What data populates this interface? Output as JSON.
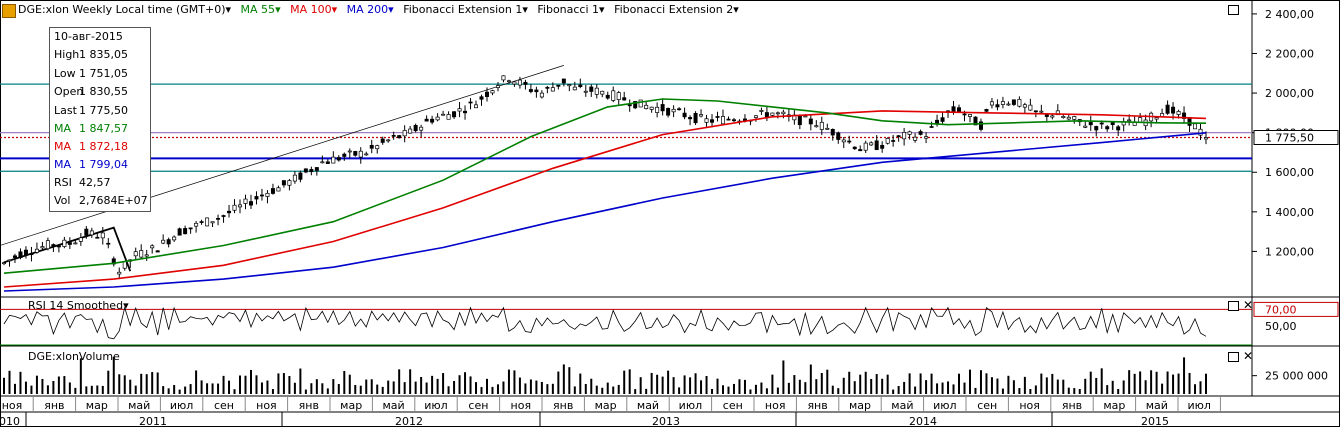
{
  "header": {
    "symbol_label": "DGE:xlon Weekly Local time (GMT+0)",
    "ma55_label": "MA 55",
    "ma100_label": "MA 100",
    "ma200_label": "MA 200",
    "fib_ext1_label": "Fibonacci Extension 1",
    "fib1_label": "Fibonacci 1",
    "fib_ext2_label": "Fibonacci Extension 2",
    "dropdown_glyph": "▾"
  },
  "ohlc_box": {
    "date": "10-авг-2015",
    "rows": [
      {
        "key": "High",
        "value": "1 835,05"
      },
      {
        "key": "Low",
        "value": "1 751,05"
      },
      {
        "key": "Open",
        "value": "1 830,55"
      },
      {
        "key": "Last",
        "value": "1 775,50"
      },
      {
        "key": "MA",
        "value": "1 847,57"
      },
      {
        "key": "MA",
        "value": "1 872,18"
      },
      {
        "key": "MA",
        "value": "1 799,04"
      },
      {
        "key": "RSI",
        "value": "42,57"
      },
      {
        "key": "Vol",
        "value": "2,7684E+07"
      }
    ]
  },
  "rsi_panel": {
    "title": "RSI 14 Smoothed",
    "level_label": "70,00",
    "tick_label": "50,00"
  },
  "volume_panel": {
    "title": "DGE:xlonVolume",
    "tick_label": "25 000 000"
  },
  "colors": {
    "ma55": "#008000",
    "ma100": "#e00000",
    "ma200": "#0000cc",
    "candle_up": "#ffffff",
    "candle_down": "#000000",
    "fib_teal": "#008080"
  },
  "chart_data": {
    "type": "candlestick",
    "timeframe": "weekly",
    "y_axis": {
      "ticks": [
        "2 400,00",
        "2 200,00",
        "2 000,00",
        "1 800,00",
        "1 600,00",
        "1 400,00",
        "1 200,00"
      ],
      "values": [
        2400,
        2200,
        2000,
        1800,
        1600,
        1400,
        1200
      ],
      "ylim": [
        1000,
        2450
      ]
    },
    "last_price_label": "1 775,50",
    "last_price": 1775.5,
    "horizontal_levels": [
      {
        "value": 2045,
        "color": "#008080"
      },
      {
        "value": 1800,
        "color": "#a080c0"
      },
      {
        "value": 1775.5,
        "color": "#c00000",
        "style": "dotted"
      },
      {
        "value": 1670,
        "color": "#0000cc"
      },
      {
        "value": 1605,
        "color": "#008080"
      }
    ],
    "x_axis": {
      "months": [
        "ноя",
        "янв",
        "мар",
        "май",
        "июл",
        "сен",
        "ноя",
        "янв",
        "мар",
        "май",
        "июл",
        "сен",
        "ноя",
        "янв",
        "мар",
        "май",
        "июл",
        "сен",
        "ноя",
        "янв",
        "мар",
        "май",
        "июл",
        "сен",
        "ноя",
        "янв",
        "мар",
        "май",
        "июл"
      ],
      "years": [
        "2010",
        "2011",
        "2012",
        "2013",
        "2014",
        "2015"
      ]
    },
    "price_path": [
      [
        0,
        1140
      ],
      [
        3,
        1190
      ],
      [
        8,
        1230
      ],
      [
        12,
        1240
      ],
      [
        15,
        1290
      ],
      [
        18,
        1280
      ],
      [
        20,
        1160
      ],
      [
        21,
        1100
      ],
      [
        24,
        1180
      ],
      [
        28,
        1220
      ],
      [
        32,
        1300
      ],
      [
        36,
        1340
      ],
      [
        40,
        1380
      ],
      [
        44,
        1440
      ],
      [
        48,
        1500
      ],
      [
        50,
        1520
      ],
      [
        54,
        1580
      ],
      [
        58,
        1650
      ],
      [
        62,
        1680
      ],
      [
        66,
        1700
      ],
      [
        70,
        1760
      ],
      [
        74,
        1800
      ],
      [
        78,
        1870
      ],
      [
        82,
        1900
      ],
      [
        86,
        1950
      ],
      [
        90,
        2050
      ],
      [
        92,
        2080
      ],
      [
        96,
        2020
      ],
      [
        98,
        2000
      ],
      [
        102,
        2060
      ],
      [
        104,
        2020
      ],
      [
        108,
        2010
      ],
      [
        112,
        1980
      ],
      [
        116,
        1940
      ],
      [
        120,
        1920
      ],
      [
        124,
        1890
      ],
      [
        128,
        1860
      ],
      [
        132,
        1870
      ],
      [
        136,
        1880
      ],
      [
        140,
        1900
      ],
      [
        144,
        1870
      ],
      [
        148,
        1850
      ],
      [
        152,
        1790
      ],
      [
        156,
        1720
      ],
      [
        160,
        1740
      ],
      [
        164,
        1780
      ],
      [
        168,
        1790
      ],
      [
        172,
        1900
      ],
      [
        174,
        1920
      ],
      [
        176,
        1870
      ],
      [
        178,
        1840
      ],
      [
        180,
        1950
      ],
      [
        184,
        1960
      ],
      [
        188,
        1900
      ],
      [
        192,
        1890
      ],
      [
        196,
        1850
      ],
      [
        200,
        1830
      ],
      [
        204,
        1840
      ],
      [
        208,
        1860
      ],
      [
        212,
        1920
      ],
      [
        216,
        1860
      ],
      [
        219,
        1775.5
      ]
    ],
    "ma55_path": [
      [
        0,
        1090
      ],
      [
        20,
        1140
      ],
      [
        40,
        1230
      ],
      [
        60,
        1350
      ],
      [
        80,
        1560
      ],
      [
        96,
        1780
      ],
      [
        110,
        1930
      ],
      [
        120,
        1970
      ],
      [
        130,
        1960
      ],
      [
        140,
        1930
      ],
      [
        150,
        1900
      ],
      [
        160,
        1860
      ],
      [
        172,
        1840
      ],
      [
        184,
        1850
      ],
      [
        196,
        1860
      ],
      [
        210,
        1850
      ],
      [
        219,
        1847.57
      ]
    ],
    "ma100_path": [
      [
        0,
        1020
      ],
      [
        20,
        1060
      ],
      [
        40,
        1130
      ],
      [
        60,
        1250
      ],
      [
        80,
        1420
      ],
      [
        100,
        1620
      ],
      [
        120,
        1790
      ],
      [
        140,
        1880
      ],
      [
        160,
        1910
      ],
      [
        180,
        1900
      ],
      [
        200,
        1890
      ],
      [
        219,
        1872.18
      ]
    ],
    "ma200_path": [
      [
        0,
        1000
      ],
      [
        20,
        1020
      ],
      [
        40,
        1060
      ],
      [
        60,
        1120
      ],
      [
        80,
        1220
      ],
      [
        100,
        1350
      ],
      [
        120,
        1470
      ],
      [
        140,
        1570
      ],
      [
        160,
        1650
      ],
      [
        180,
        1700
      ],
      [
        200,
        1750
      ],
      [
        219,
        1799.04
      ]
    ],
    "volume_scale": "relative bars, tick 25 000 000",
    "rsi_levels": [
      70,
      50
    ]
  }
}
